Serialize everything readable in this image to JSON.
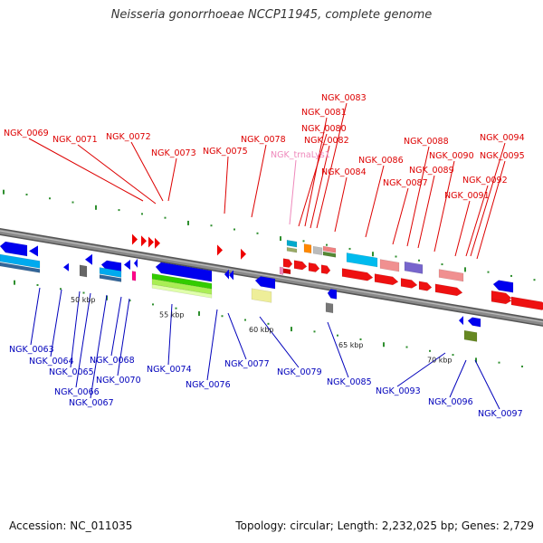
{
  "title": "Neisseria gonorrhoeae NCCP11945, complete genome",
  "footer": {
    "accession": "Accession: NC_011035",
    "summary": "Topology: circular; Length: 2,232,025 bp; Genes: 2,729"
  },
  "colors": {
    "forward_label": "#dd0000",
    "reverse_label": "#0000bb",
    "trna_label": "#ee88bb",
    "backbone": "#8a8a8a"
  },
  "scale_ticks": [
    {
      "kbp": 50,
      "label": "50 kbp"
    },
    {
      "kbp": 55,
      "label": "55 kbp"
    },
    {
      "kbp": 60,
      "label": "60 kbp"
    },
    {
      "kbp": 65,
      "label": "65 kbp"
    },
    {
      "kbp": 70,
      "label": "70 kbp"
    }
  ],
  "forward_genes": [
    {
      "id": "NGK_0069",
      "strand": "+"
    },
    {
      "id": "NGK_0071",
      "strand": "+"
    },
    {
      "id": "NGK_0072",
      "strand": "+"
    },
    {
      "id": "NGK_0073",
      "strand": "+"
    },
    {
      "id": "NGK_0075",
      "strand": "+"
    },
    {
      "id": "NGK_0078",
      "strand": "+"
    },
    {
      "id": "NGK_trnaLys1",
      "strand": "+",
      "kind": "tRNA"
    },
    {
      "id": "NGK_0080",
      "strand": "+"
    },
    {
      "id": "NGK_0081",
      "strand": "+"
    },
    {
      "id": "NGK_0082",
      "strand": "+"
    },
    {
      "id": "NGK_0083",
      "strand": "+"
    },
    {
      "id": "NGK_0084",
      "strand": "+"
    },
    {
      "id": "NGK_0086",
      "strand": "+"
    },
    {
      "id": "NGK_0087",
      "strand": "+"
    },
    {
      "id": "NGK_0088",
      "strand": "+"
    },
    {
      "id": "NGK_0089",
      "strand": "+"
    },
    {
      "id": "NGK_0090",
      "strand": "+"
    },
    {
      "id": "NGK_0091",
      "strand": "+"
    },
    {
      "id": "NGK_0092",
      "strand": "+"
    },
    {
      "id": "NGK_0094",
      "strand": "+"
    },
    {
      "id": "NGK_0095",
      "strand": "+"
    }
  ],
  "reverse_genes": [
    {
      "id": "NGK_0063",
      "strand": "-"
    },
    {
      "id": "NGK_0064",
      "strand": "-"
    },
    {
      "id": "NGK_0065",
      "strand": "-"
    },
    {
      "id": "NGK_0066",
      "strand": "-"
    },
    {
      "id": "NGK_0067",
      "strand": "-"
    },
    {
      "id": "NGK_0068",
      "strand": "-"
    },
    {
      "id": "NGK_0070",
      "strand": "-"
    },
    {
      "id": "NGK_0074",
      "strand": "-"
    },
    {
      "id": "NGK_0076",
      "strand": "-"
    },
    {
      "id": "NGK_0077",
      "strand": "-"
    },
    {
      "id": "NGK_0079",
      "strand": "-"
    },
    {
      "id": "NGK_0085",
      "strand": "-"
    },
    {
      "id": "NGK_0093",
      "strand": "-"
    },
    {
      "id": "NGK_0096",
      "strand": "-"
    },
    {
      "id": "NGK_0097",
      "strand": "-"
    }
  ]
}
